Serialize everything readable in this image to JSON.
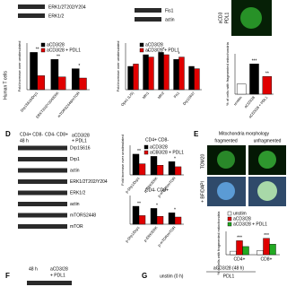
{
  "figure": {
    "top": {
      "erk_p": "ERK1/2T202/Y204",
      "erk": "ERK1/2",
      "fis1": "Fis1",
      "actin": "actin",
      "acd3": "aCD3",
      "pdl1": "PDL1"
    },
    "side": "Human T cells",
    "panel_d": {
      "letter": "D",
      "cd4": "CD4+ CD8-",
      "cd8": "CD4- CD8+",
      "time": "48 h",
      "stim": "aCD3/28",
      "pdl1": "+ PDL1",
      "blots": [
        "Drp1S616",
        "Drp1",
        "actin",
        "ERK1/2T202/Y204",
        "ERK1/2",
        "actin",
        "mTORS2448",
        "mTOR"
      ]
    },
    "panel_e": {
      "letter": "E",
      "title": "Mitochondria morphology",
      "fragmented": "fragmented",
      "unfragmented": "unfragmented",
      "stain": "TOM20",
      "overlay": "+ BF/DAPI"
    },
    "panel_f": {
      "letter": "F",
      "time": "48 h",
      "stim": "aCD3/28",
      "pdl1": "+ PDL1"
    },
    "panel_g": {
      "letter": "G",
      "title": "aCD3/28 (48 h)",
      "unstim": "unstim (0 h)",
      "pdl1": "PDL1"
    }
  },
  "chart_data": [
    {
      "type": "bar",
      "ylabel": "Fold increase over unstimulated",
      "legend": true,
      "categories": [
        "Drp1S616/Drp1",
        "ERKT202/Y204/ERK",
        "mTORS2448/mTOR"
      ],
      "series": [
        {
          "name": "aCD3/28",
          "color": "#000000",
          "values": [
            3.2,
            2.6,
            1.8
          ]
        },
        {
          "name": "aCD3/28 + PDL1",
          "color": "#e00000",
          "values": [
            1.2,
            1.1,
            1.0
          ]
        }
      ],
      "annotations": [
        "**",
        "**",
        "*"
      ],
      "ylim": [
        0,
        4
      ]
    },
    {
      "type": "bar",
      "ylabel": "Fold increase over unstimulated",
      "legend": true,
      "categories": [
        "Opa1 (L/S)",
        "Mfn1",
        "Mfn2",
        "Fis1",
        "Drp1S637"
      ],
      "series": [
        {
          "name": "aCD3/28",
          "color": "#000000",
          "values": [
            1.0,
            1.5,
            1.6,
            1.3,
            1.0
          ]
        },
        {
          "name": "aCD3/28 + PDL1",
          "color": "#e00000",
          "values": [
            1.1,
            1.4,
            1.5,
            1.4,
            0.9
          ]
        }
      ],
      "annotations": [
        null,
        "*",
        "*",
        "*",
        null
      ],
      "ylim": [
        0,
        2
      ]
    },
    {
      "type": "bar",
      "ylabel": "% of cells with fragmented mitochondria",
      "legend": false,
      "categories": [
        "unstim",
        "aCD3/28",
        "aCD3/28 + PDL1"
      ],
      "values": [
        20,
        60,
        35
      ],
      "colors": [
        "#ffffff",
        "#000000",
        "#e00000"
      ],
      "annotations": [
        null,
        "***",
        "**"
      ],
      "ylim": [
        0,
        80
      ]
    },
    {
      "type": "bar",
      "title": "CD4+ CD8-",
      "ylabel": "Fold increase over unstimulated",
      "legend": true,
      "categories": [
        "p-Drp1/Drp1",
        "p-ERK/ERK",
        "p-mTOR/mTOR"
      ],
      "series": [
        {
          "name": "aCD3/28",
          "color": "#000000",
          "values": [
            2.8,
            2.5,
            1.8
          ]
        },
        {
          "name": "aCD3/28 + PDL1",
          "color": "#e00000",
          "values": [
            1.5,
            1.3,
            1.1
          ]
        }
      ],
      "annotations": [
        "**",
        "*",
        "*"
      ],
      "ylim": [
        0,
        4
      ]
    },
    {
      "type": "bar",
      "title": "CD4- CD8+",
      "legend": false,
      "categories": [
        "p-Drp1/Drp1",
        "p-ERK/ERK",
        "p-mTOR/mTOR"
      ],
      "series": [
        {
          "name": "aCD3/28",
          "color": "#000000",
          "values": [
            2.5,
            2.2,
            1.6
          ]
        },
        {
          "name": "aCD3/28 + PDL1",
          "color": "#e00000",
          "values": [
            1.2,
            1.1,
            1.0
          ]
        }
      ],
      "annotations": [
        "**",
        "*",
        "*"
      ],
      "ylim": [
        0,
        4
      ]
    },
    {
      "type": "bar",
      "ylabel": "% of cells with fragmented mitochondria",
      "legend": true,
      "horizontal_labels": true,
      "categories": [
        "CD4+",
        "CD8+"
      ],
      "series": [
        {
          "name": "unstim",
          "color": "#ffffff",
          "values": [
            15,
            18
          ]
        },
        {
          "name": "aCD3/28",
          "color": "#e00000",
          "values": [
            60,
            70
          ]
        },
        {
          "name": "aCD3/28 + PDL1",
          "color": "#22aa22",
          "values": [
            35,
            45
          ]
        }
      ],
      "annotations": [
        "***",
        "***"
      ],
      "ylim": [
        0,
        100
      ]
    }
  ]
}
